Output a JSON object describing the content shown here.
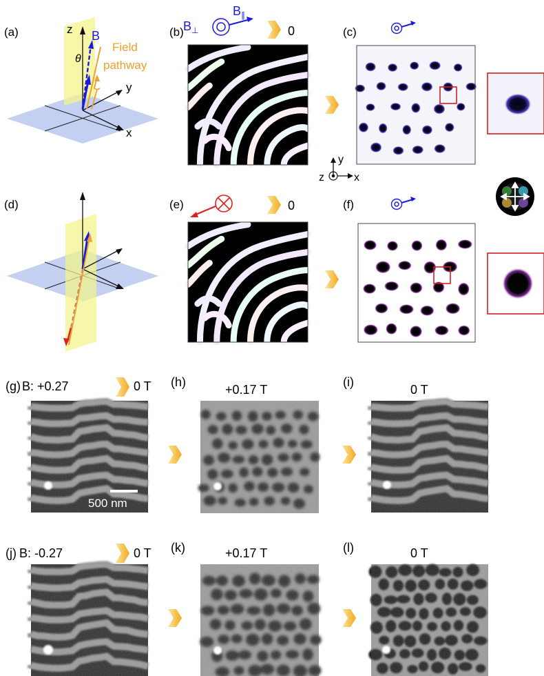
{
  "panels": {
    "a": {
      "label": "(a)",
      "axis_z": "z",
      "axis_y": "y",
      "axis_x": "x",
      "vector": "B",
      "angle": "θ",
      "pathway_line1": "Field",
      "pathway_line2": "pathway"
    },
    "b": {
      "label": "(b)",
      "b_perp": "B",
      "b_perp_sub": "⊥",
      "b_par": "B",
      "b_par_sub": "∥",
      "zero": "0"
    },
    "c": {
      "label": "(c)"
    },
    "coords": {
      "y": "y",
      "z": "z",
      "x": "x"
    },
    "d": {
      "label": "(d)"
    },
    "e": {
      "label": "(e)",
      "zero": "0"
    },
    "f": {
      "label": "(f)"
    },
    "g": {
      "label": "(g)",
      "text": "B: +0.27",
      "end": "0 T",
      "scalebar": "500 nm"
    },
    "h": {
      "label": "(h)",
      "text": "+0.17 T"
    },
    "i": {
      "label": "(i)",
      "text": "0 T"
    },
    "j": {
      "label": "(j)",
      "text": "B: -0.27",
      "end": "0 T"
    },
    "k": {
      "label": "(k)",
      "text": "+0.17 T"
    },
    "l": {
      "label": "(l)",
      "text": "0 T"
    }
  },
  "colors": {
    "field_blue": "#1a1adf",
    "pathway_orange": "#f0a030",
    "arrow_gold": "#f5b82a",
    "red": "#e02020",
    "plane_blue": "#b8c8ee",
    "plane_yellow": "#f4f48a",
    "inset_border": "#d02020"
  }
}
